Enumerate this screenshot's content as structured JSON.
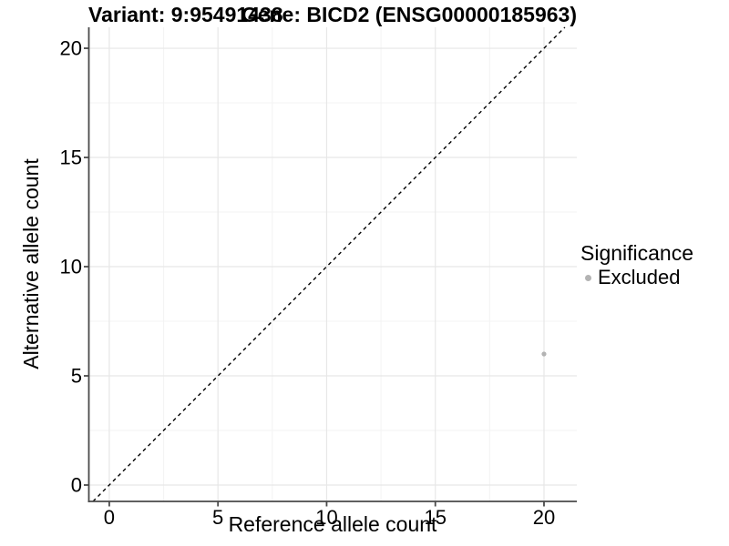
{
  "chart_data": {
    "type": "scatter",
    "title_left": "Variant: 9:95491438",
    "title_right": "Gene: BICD2 (ENSG00000185963)",
    "xlabel": "Reference allele count",
    "ylabel": "Alternative allele count",
    "x_ticks": [
      0,
      5,
      10,
      15,
      20
    ],
    "y_ticks": [
      0,
      5,
      10,
      15,
      20
    ],
    "xlim": [
      -0.94,
      21.51
    ],
    "ylim": [
      -0.75,
      20.96
    ],
    "minor_tick_step": 2.5,
    "grid": "major+minor",
    "diagonal_line": {
      "equation": "y = x",
      "style": "dashed",
      "color": "#000000"
    },
    "series": [
      {
        "name": "Excluded",
        "color": "#b3b3b3",
        "points": [
          [
            20,
            6
          ]
        ]
      }
    ],
    "legend": {
      "title": "Significance",
      "position": "right",
      "items": [
        {
          "label": "Excluded",
          "color": "#b3b3b3"
        }
      ]
    },
    "style": {
      "axis_color": "#4a4a4a",
      "text_color": "#000000",
      "grid_major_color": "#e7e7e7",
      "grid_minor_color": "#f3f3f3",
      "background": "#ffffff"
    }
  }
}
